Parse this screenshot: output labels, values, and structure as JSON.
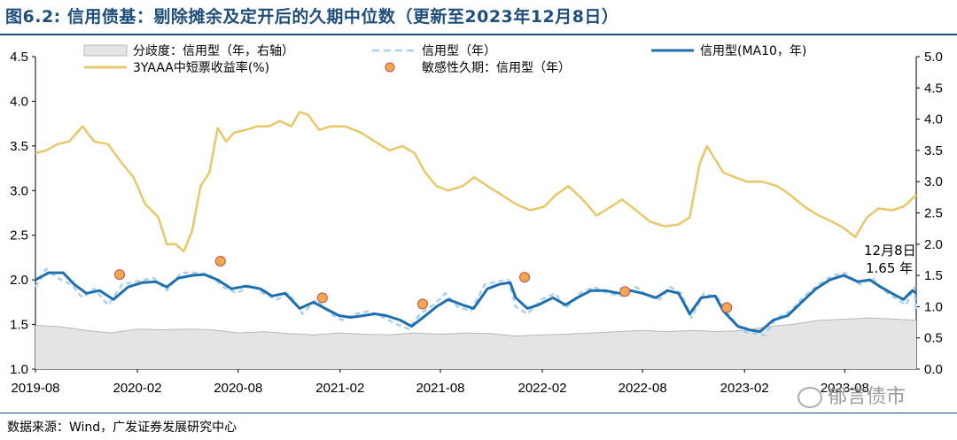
{
  "title": "图6.2: 信用债基：剔除摊余及定开后的久期中位数（更新至2023年12月8日）",
  "source": "数据来源：Wind，广发证券发展研究中心",
  "watermark": "郁言债市",
  "colors": {
    "title": "#1f4e79",
    "ma10": "#1f6ead",
    "duration": "#a9d1ef",
    "yield": "#e6c86a",
    "dispersion_fill": "#e4e4e4",
    "dispersion_line": "#b8b8b8",
    "dot_fill": "#f2a850",
    "dot_stroke": "#c0504d"
  },
  "chart_data": {
    "type": "line",
    "x_ticks": [
      "2019-08",
      "2020-02",
      "2020-08",
      "2021-02",
      "2021-08",
      "2022-02",
      "2022-08",
      "2023-02",
      "2023-08"
    ],
    "xlim": [
      "2019-08-01",
      "2023-12-08"
    ],
    "y_left": {
      "ylim": [
        1.0,
        4.5
      ],
      "ticks": [
        "1.0",
        "1.5",
        "2.0",
        "2.5",
        "3.0",
        "3.5",
        "4.0",
        "4.5"
      ]
    },
    "y_right": {
      "ylim": [
        0.0,
        5.0
      ],
      "ticks": [
        "0.0",
        "0.5",
        "1.0",
        "1.5",
        "2.0",
        "2.5",
        "3.0",
        "3.5",
        "4.0",
        "4.5",
        "5.0"
      ]
    },
    "legend": {
      "dispersion": "分歧度：信用型（年，右轴）",
      "duration": "信用型（年）",
      "ma10": "信用型(MA10，年)",
      "yield": "3YAAA中短票收益率(%)",
      "sensitivity": "敏感性久期：信用型（年）"
    },
    "annotation": {
      "line1": "12月8日",
      "line2": "1.65 年"
    },
    "series": [
      {
        "name": "3YAAA中短票收益率(%)",
        "axis": "left",
        "points": [
          [
            "2019-08-01",
            3.42
          ],
          [
            "2019-08-20",
            3.45
          ],
          [
            "2019-09-10",
            3.52
          ],
          [
            "2019-10-01",
            3.55
          ],
          [
            "2019-10-25",
            3.72
          ],
          [
            "2019-11-15",
            3.55
          ],
          [
            "2019-12-10",
            3.52
          ],
          [
            "2020-01-05",
            3.3
          ],
          [
            "2020-01-25",
            3.15
          ],
          [
            "2020-02-15",
            2.85
          ],
          [
            "2020-03-10",
            2.7
          ],
          [
            "2020-03-25",
            2.4
          ],
          [
            "2020-04-10",
            2.4
          ],
          [
            "2020-04-25",
            2.32
          ],
          [
            "2020-05-10",
            2.55
          ],
          [
            "2020-05-25",
            3.05
          ],
          [
            "2020-06-10",
            3.2
          ],
          [
            "2020-06-25",
            3.7
          ],
          [
            "2020-07-10",
            3.55
          ],
          [
            "2020-07-25",
            3.65
          ],
          [
            "2020-08-15",
            3.68
          ],
          [
            "2020-09-05",
            3.72
          ],
          [
            "2020-09-25",
            3.72
          ],
          [
            "2020-10-15",
            3.78
          ],
          [
            "2020-11-05",
            3.72
          ],
          [
            "2020-11-20",
            3.88
          ],
          [
            "2020-12-05",
            3.85
          ],
          [
            "2020-12-25",
            3.68
          ],
          [
            "2021-01-15",
            3.72
          ],
          [
            "2021-02-10",
            3.72
          ],
          [
            "2021-03-10",
            3.65
          ],
          [
            "2021-04-05",
            3.55
          ],
          [
            "2021-05-01",
            3.45
          ],
          [
            "2021-05-25",
            3.5
          ],
          [
            "2021-06-15",
            3.42
          ],
          [
            "2021-07-05",
            3.2
          ],
          [
            "2021-07-25",
            3.05
          ],
          [
            "2021-08-15",
            3.0
          ],
          [
            "2021-09-10",
            3.05
          ],
          [
            "2021-10-01",
            3.15
          ],
          [
            "2021-10-25",
            3.05
          ],
          [
            "2021-11-20",
            2.95
          ],
          [
            "2021-12-15",
            2.85
          ],
          [
            "2022-01-10",
            2.78
          ],
          [
            "2022-02-05",
            2.82
          ],
          [
            "2022-02-25",
            2.95
          ],
          [
            "2022-03-20",
            3.05
          ],
          [
            "2022-04-15",
            2.9
          ],
          [
            "2022-05-10",
            2.72
          ],
          [
            "2022-06-05",
            2.82
          ],
          [
            "2022-06-25",
            2.9
          ],
          [
            "2022-07-20",
            2.78
          ],
          [
            "2022-08-15",
            2.65
          ],
          [
            "2022-09-10",
            2.6
          ],
          [
            "2022-10-05",
            2.62
          ],
          [
            "2022-10-25",
            2.7
          ],
          [
            "2022-11-12",
            3.3
          ],
          [
            "2022-11-25",
            3.5
          ],
          [
            "2022-12-10",
            3.35
          ],
          [
            "2022-12-25",
            3.2
          ],
          [
            "2023-01-15",
            3.15
          ],
          [
            "2023-02-05",
            3.1
          ],
          [
            "2023-03-05",
            3.1
          ],
          [
            "2023-04-01",
            3.05
          ],
          [
            "2023-04-25",
            2.95
          ],
          [
            "2023-05-20",
            2.82
          ],
          [
            "2023-06-15",
            2.72
          ],
          [
            "2023-07-10",
            2.65
          ],
          [
            "2023-07-30",
            2.58
          ],
          [
            "2023-08-20",
            2.48
          ],
          [
            "2023-09-10",
            2.7
          ],
          [
            "2023-10-01",
            2.8
          ],
          [
            "2023-10-25",
            2.78
          ],
          [
            "2023-11-15",
            2.82
          ],
          [
            "2023-12-08",
            2.95
          ]
        ]
      },
      {
        "name": "信用型(MA10，年)",
        "axis": "left",
        "points": [
          [
            "2019-08-01",
            2.0
          ],
          [
            "2019-08-25",
            2.08
          ],
          [
            "2019-09-20",
            2.08
          ],
          [
            "2019-10-10",
            1.95
          ],
          [
            "2019-11-01",
            1.85
          ],
          [
            "2019-11-25",
            1.88
          ],
          [
            "2019-12-20",
            1.78
          ],
          [
            "2020-01-15",
            1.92
          ],
          [
            "2020-02-10",
            1.97
          ],
          [
            "2020-03-05",
            1.98
          ],
          [
            "2020-03-25",
            1.92
          ],
          [
            "2020-04-15",
            2.02
          ],
          [
            "2020-05-10",
            2.05
          ],
          [
            "2020-06-01",
            2.06
          ],
          [
            "2020-06-25",
            2.0
          ],
          [
            "2020-07-20",
            1.9
          ],
          [
            "2020-08-15",
            1.93
          ],
          [
            "2020-09-10",
            1.9
          ],
          [
            "2020-10-01",
            1.82
          ],
          [
            "2020-10-25",
            1.85
          ],
          [
            "2020-11-20",
            1.68
          ],
          [
            "2020-12-15",
            1.75
          ],
          [
            "2021-01-05",
            1.68
          ],
          [
            "2021-01-30",
            1.6
          ],
          [
            "2021-02-20",
            1.58
          ],
          [
            "2021-03-15",
            1.6
          ],
          [
            "2021-04-05",
            1.62
          ],
          [
            "2021-04-25",
            1.6
          ],
          [
            "2021-05-20",
            1.55
          ],
          [
            "2021-06-10",
            1.48
          ],
          [
            "2021-07-01",
            1.58
          ],
          [
            "2021-07-25",
            1.7
          ],
          [
            "2021-08-15",
            1.78
          ],
          [
            "2021-09-10",
            1.72
          ],
          [
            "2021-09-30",
            1.68
          ],
          [
            "2021-10-25",
            1.9
          ],
          [
            "2021-11-15",
            1.95
          ],
          [
            "2021-12-05",
            1.97
          ],
          [
            "2021-12-15",
            1.8
          ],
          [
            "2022-01-05",
            1.68
          ],
          [
            "2022-01-25",
            1.72
          ],
          [
            "2022-02-20",
            1.8
          ],
          [
            "2022-03-15",
            1.72
          ],
          [
            "2022-04-05",
            1.8
          ],
          [
            "2022-04-30",
            1.88
          ],
          [
            "2022-05-25",
            1.88
          ],
          [
            "2022-06-20",
            1.85
          ],
          [
            "2022-07-10",
            1.88
          ],
          [
            "2022-08-01",
            1.85
          ],
          [
            "2022-08-25",
            1.8
          ],
          [
            "2022-09-15",
            1.88
          ],
          [
            "2022-10-05",
            1.85
          ],
          [
            "2022-10-25",
            1.62
          ],
          [
            "2022-11-15",
            1.8
          ],
          [
            "2022-12-10",
            1.82
          ],
          [
            "2022-12-25",
            1.65
          ],
          [
            "2023-01-20",
            1.48
          ],
          [
            "2023-02-10",
            1.44
          ],
          [
            "2023-03-01",
            1.42
          ],
          [
            "2023-03-25",
            1.55
          ],
          [
            "2023-04-20",
            1.6
          ],
          [
            "2023-05-15",
            1.75
          ],
          [
            "2023-06-10",
            1.9
          ],
          [
            "2023-07-05",
            2.0
          ],
          [
            "2023-07-30",
            2.05
          ],
          [
            "2023-08-25",
            1.98
          ],
          [
            "2023-09-15",
            2.0
          ],
          [
            "2023-10-05",
            1.92
          ],
          [
            "2023-10-25",
            1.85
          ],
          [
            "2023-11-15",
            1.78
          ],
          [
            "2023-12-01",
            1.88
          ],
          [
            "2023-12-08",
            1.85
          ]
        ]
      },
      {
        "name": "信用型（年）",
        "axis": "left",
        "points": [
          [
            "2019-08-01",
            1.92
          ],
          [
            "2019-08-20",
            2.12
          ],
          [
            "2019-09-10",
            2.02
          ],
          [
            "2019-10-05",
            1.95
          ],
          [
            "2019-10-25",
            1.8
          ],
          [
            "2019-11-15",
            1.9
          ],
          [
            "2019-12-10",
            1.72
          ],
          [
            "2020-01-05",
            1.95
          ],
          [
            "2020-02-05",
            1.99
          ],
          [
            "2020-03-01",
            2.02
          ],
          [
            "2020-03-25",
            1.88
          ],
          [
            "2020-04-20",
            2.08
          ],
          [
            "2020-05-15",
            2.08
          ],
          [
            "2020-06-10",
            2.06
          ],
          [
            "2020-07-05",
            1.92
          ],
          [
            "2020-07-30",
            1.85
          ],
          [
            "2020-08-25",
            1.95
          ],
          [
            "2020-09-15",
            1.85
          ],
          [
            "2020-10-10",
            1.78
          ],
          [
            "2020-11-01",
            1.85
          ],
          [
            "2020-11-25",
            1.62
          ],
          [
            "2020-12-20",
            1.78
          ],
          [
            "2021-01-15",
            1.62
          ],
          [
            "2021-02-05",
            1.55
          ],
          [
            "2021-03-01",
            1.62
          ],
          [
            "2021-03-25",
            1.65
          ],
          [
            "2021-04-20",
            1.58
          ],
          [
            "2021-05-15",
            1.5
          ],
          [
            "2021-06-05",
            1.45
          ],
          [
            "2021-06-25",
            1.62
          ],
          [
            "2021-07-20",
            1.72
          ],
          [
            "2021-08-10",
            1.85
          ],
          [
            "2021-09-01",
            1.7
          ],
          [
            "2021-09-25",
            1.65
          ],
          [
            "2021-10-20",
            1.95
          ],
          [
            "2021-11-10",
            1.98
          ],
          [
            "2021-12-01",
            2.0
          ],
          [
            "2021-12-15",
            1.7
          ],
          [
            "2022-01-05",
            1.62
          ],
          [
            "2022-01-30",
            1.78
          ],
          [
            "2022-02-25",
            1.85
          ],
          [
            "2022-03-15",
            1.68
          ],
          [
            "2022-04-10",
            1.85
          ],
          [
            "2022-05-05",
            1.92
          ],
          [
            "2022-05-30",
            1.85
          ],
          [
            "2022-06-25",
            1.82
          ],
          [
            "2022-07-20",
            1.92
          ],
          [
            "2022-08-10",
            1.82
          ],
          [
            "2022-09-01",
            1.78
          ],
          [
            "2022-09-20",
            1.92
          ],
          [
            "2022-10-10",
            1.85
          ],
          [
            "2022-10-28",
            1.58
          ],
          [
            "2022-11-20",
            1.85
          ],
          [
            "2022-12-15",
            1.8
          ],
          [
            "2023-01-05",
            1.6
          ],
          [
            "2023-01-30",
            1.42
          ],
          [
            "2023-02-20",
            1.4
          ],
          [
            "2023-03-10",
            1.38
          ],
          [
            "2023-04-01",
            1.58
          ],
          [
            "2023-04-25",
            1.65
          ],
          [
            "2023-05-20",
            1.82
          ],
          [
            "2023-06-15",
            1.95
          ],
          [
            "2023-07-10",
            2.05
          ],
          [
            "2023-08-01",
            2.08
          ],
          [
            "2023-08-28",
            1.95
          ],
          [
            "2023-09-20",
            2.02
          ],
          [
            "2023-10-10",
            1.88
          ],
          [
            "2023-10-30",
            1.8
          ],
          [
            "2023-11-20",
            1.72
          ],
          [
            "2023-12-04",
            1.92
          ],
          [
            "2023-12-08",
            1.65
          ]
        ]
      },
      {
        "name": "分歧度：信用型（年，右轴）",
        "axis": "right",
        "points": [
          [
            "2019-08-01",
            0.7
          ],
          [
            "2019-09-15",
            0.68
          ],
          [
            "2019-11-01",
            0.62
          ],
          [
            "2019-12-15",
            0.58
          ],
          [
            "2020-02-01",
            0.64
          ],
          [
            "2020-03-15",
            0.63
          ],
          [
            "2020-05-01",
            0.64
          ],
          [
            "2020-06-15",
            0.63
          ],
          [
            "2020-08-01",
            0.58
          ],
          [
            "2020-09-15",
            0.6
          ],
          [
            "2020-11-01",
            0.57
          ],
          [
            "2020-12-15",
            0.55
          ],
          [
            "2021-02-01",
            0.58
          ],
          [
            "2021-03-15",
            0.56
          ],
          [
            "2021-05-01",
            0.55
          ],
          [
            "2021-06-15",
            0.58
          ],
          [
            "2021-08-01",
            0.56
          ],
          [
            "2021-09-15",
            0.58
          ],
          [
            "2021-11-01",
            0.57
          ],
          [
            "2021-12-15",
            0.53
          ],
          [
            "2022-02-01",
            0.55
          ],
          [
            "2022-03-15",
            0.56
          ],
          [
            "2022-05-01",
            0.58
          ],
          [
            "2022-06-15",
            0.6
          ],
          [
            "2022-08-01",
            0.62
          ],
          [
            "2022-09-15",
            0.6
          ],
          [
            "2022-11-01",
            0.62
          ],
          [
            "2022-12-15",
            0.6
          ],
          [
            "2023-02-01",
            0.62
          ],
          [
            "2023-03-15",
            0.68
          ],
          [
            "2023-05-01",
            0.72
          ],
          [
            "2023-06-15",
            0.78
          ],
          [
            "2023-08-01",
            0.8
          ],
          [
            "2023-09-15",
            0.82
          ],
          [
            "2023-11-01",
            0.8
          ],
          [
            "2023-12-08",
            0.78
          ]
        ]
      },
      {
        "name": "敏感性久期：信用型（年）",
        "axis": "left",
        "type": "scatter",
        "points": [
          [
            "2019-12-31",
            2.06
          ],
          [
            "2020-06-30",
            2.21
          ],
          [
            "2020-12-31",
            1.8
          ],
          [
            "2021-06-30",
            1.73
          ],
          [
            "2021-12-31",
            2.03
          ],
          [
            "2022-06-30",
            1.87
          ],
          [
            "2022-12-31",
            1.69
          ]
        ]
      }
    ]
  }
}
